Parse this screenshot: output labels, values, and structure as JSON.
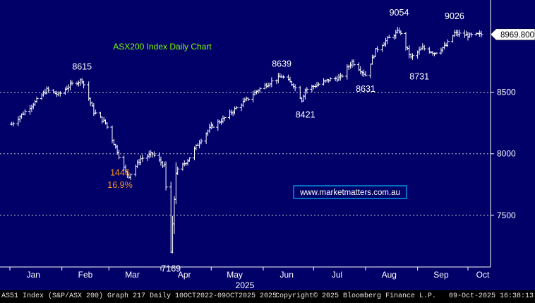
{
  "chart_data": {
    "type": "line",
    "style": "ohlc-bars",
    "title": "ASX200 Index Daily Chart",
    "watermark": "www.marketmatters.com.au",
    "x_axis": {
      "year_label": "2025",
      "months": [
        "Jan",
        "Feb",
        "Mar",
        "Apr",
        "May",
        "Jun",
        "Jul",
        "Aug",
        "Sep",
        "Oct"
      ],
      "range": [
        "2025-01-01",
        "2025-10-09"
      ]
    },
    "y_axis": {
      "ticks": [
        7500,
        8000,
        8500
      ],
      "tick_labels": [
        "7500",
        "8000",
        "8500"
      ],
      "range": [
        7080,
        9250
      ],
      "position": "right",
      "grid": true
    },
    "last_price_label": "8969.800",
    "last_price": 8969.8,
    "annotations": [
      {
        "text": "8615",
        "x": "2025-02-13",
        "y": 8615,
        "color": "#ffffff"
      },
      {
        "text": "7169",
        "x": "2025-04-07",
        "y": 7169,
        "color": "#ffffff"
      },
      {
        "text": "8639",
        "x": "2025-06-12",
        "y": 8639,
        "color": "#ffffff"
      },
      {
        "text": "8421",
        "x": "2025-06-24",
        "y": 8421,
        "color": "#ffffff"
      },
      {
        "text": "8631",
        "x": "2025-08-01",
        "y": 8631,
        "color": "#ffffff"
      },
      {
        "text": "9054",
        "x": "2025-08-21",
        "y": 9054,
        "color": "#ffffff"
      },
      {
        "text": "8731",
        "x": "2025-08-28",
        "y": 8731,
        "color": "#ffffff"
      },
      {
        "text": "9026",
        "x": "2025-09-23",
        "y": 9026,
        "color": "#ffffff"
      },
      {
        "text": "1446",
        "x": "2025-03-11",
        "y": 7800,
        "color": "#f7931e"
      },
      {
        "text": "16.9%",
        "x": "2025-03-11",
        "y": 7700,
        "color": "#f7931e"
      }
    ],
    "series": [
      {
        "dates": [
          "2025-01-02",
          "2025-01-09",
          "2025-01-16",
          "2025-01-23",
          "2025-01-30",
          "2025-02-06",
          "2025-02-13",
          "2025-02-20",
          "2025-02-27",
          "2025-03-06",
          "2025-03-11",
          "2025-03-13",
          "2025-03-20",
          "2025-03-27",
          "2025-04-03",
          "2025-04-07",
          "2025-04-10",
          "2025-04-17",
          "2025-04-24",
          "2025-05-01",
          "2025-05-08",
          "2025-05-15",
          "2025-05-22",
          "2025-05-29",
          "2025-06-05",
          "2025-06-12",
          "2025-06-19",
          "2025-06-24",
          "2025-06-26",
          "2025-07-03",
          "2025-07-10",
          "2025-07-17",
          "2025-07-24",
          "2025-08-01",
          "2025-08-07",
          "2025-08-14",
          "2025-08-21",
          "2025-08-28",
          "2025-09-04",
          "2025-09-11",
          "2025-09-18",
          "2025-09-23",
          "2025-10-02",
          "2025-10-09"
        ],
        "values": [
          8240,
          8330,
          8420,
          8520,
          8480,
          8560,
          8600,
          8340,
          8250,
          8020,
          7850,
          7820,
          7960,
          8000,
          7900,
          7200,
          7850,
          7950,
          8100,
          8220,
          8280,
          8360,
          8440,
          8520,
          8580,
          8630,
          8560,
          8440,
          8520,
          8560,
          8600,
          8620,
          8750,
          8640,
          8840,
          8930,
          9000,
          8780,
          8860,
          8820,
          8880,
          8980,
          8960,
          8969.8
        ]
      }
    ]
  },
  "footer": {
    "left": "AS51 Index (S&P/ASX 200) Graph 217 Daily 10OCT2022-09OCT2025 2025",
    "center": "Copyright© 2025 Bloomberg Finance L.P.",
    "right": "09-Oct-2025 16:38:13"
  },
  "colors": {
    "background": "#000068",
    "grid": "#c8c8c8",
    "bars": "#ffffff",
    "title": "#7cfc00",
    "watermark_text": "#ffffff",
    "watermark_border": "#00b4ff",
    "highlight": "#f7931e"
  }
}
